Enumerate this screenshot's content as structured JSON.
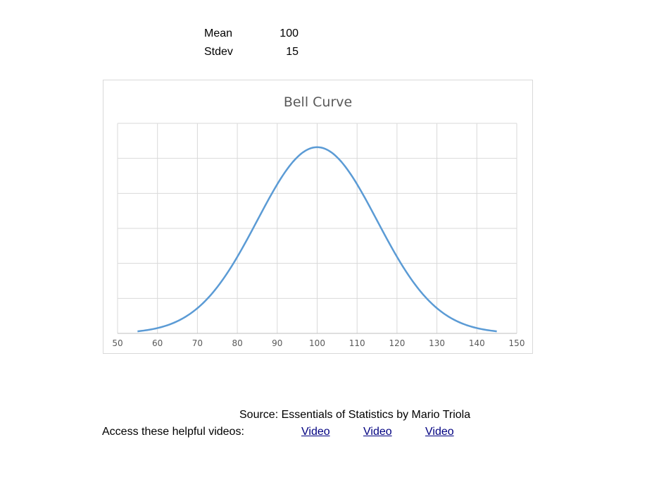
{
  "params": {
    "mean_label": "Mean",
    "mean_value": "100",
    "stdev_label": "Stdev",
    "stdev_value": "15"
  },
  "chart_data": {
    "type": "line",
    "title": "Bell Curve",
    "xlabel": "",
    "ylabel": "",
    "xlim": [
      50,
      150
    ],
    "x_ticks": [
      "50",
      "60",
      "70",
      "80",
      "90",
      "100",
      "110",
      "120",
      "130",
      "140",
      "150"
    ],
    "y_ticks_shown": false,
    "grid": true,
    "legend": "none",
    "series_color": "#5b9bd5",
    "mean": 100,
    "stdev": 15,
    "x_range": [
      55,
      145
    ],
    "points": [
      {
        "x": 55,
        "y": 0.0003
      },
      {
        "x": 60,
        "y": 0.00076
      },
      {
        "x": 65,
        "y": 0.00171
      },
      {
        "x": 70,
        "y": 0.0036
      },
      {
        "x": 75,
        "y": 0.00665
      },
      {
        "x": 80,
        "y": 0.01093
      },
      {
        "x": 85,
        "y": 0.01613
      },
      {
        "x": 90,
        "y": 0.0213
      },
      {
        "x": 95,
        "y": 0.02516
      },
      {
        "x": 100,
        "y": 0.0266
      },
      {
        "x": 105,
        "y": 0.02516
      },
      {
        "x": 110,
        "y": 0.0213
      },
      {
        "x": 115,
        "y": 0.01613
      },
      {
        "x": 120,
        "y": 0.01093
      },
      {
        "x": 125,
        "y": 0.00665
      },
      {
        "x": 130,
        "y": 0.0036
      },
      {
        "x": 135,
        "y": 0.00171
      },
      {
        "x": 140,
        "y": 0.00076
      },
      {
        "x": 145,
        "y": 0.0003
      }
    ],
    "ylim": [
      0,
      0.03
    ]
  },
  "footer": {
    "source": "Source: Essentials of Statistics by Mario Triola",
    "access_label": "Access these helpful videos:",
    "videos": [
      "Video",
      "Video",
      "Video"
    ]
  }
}
